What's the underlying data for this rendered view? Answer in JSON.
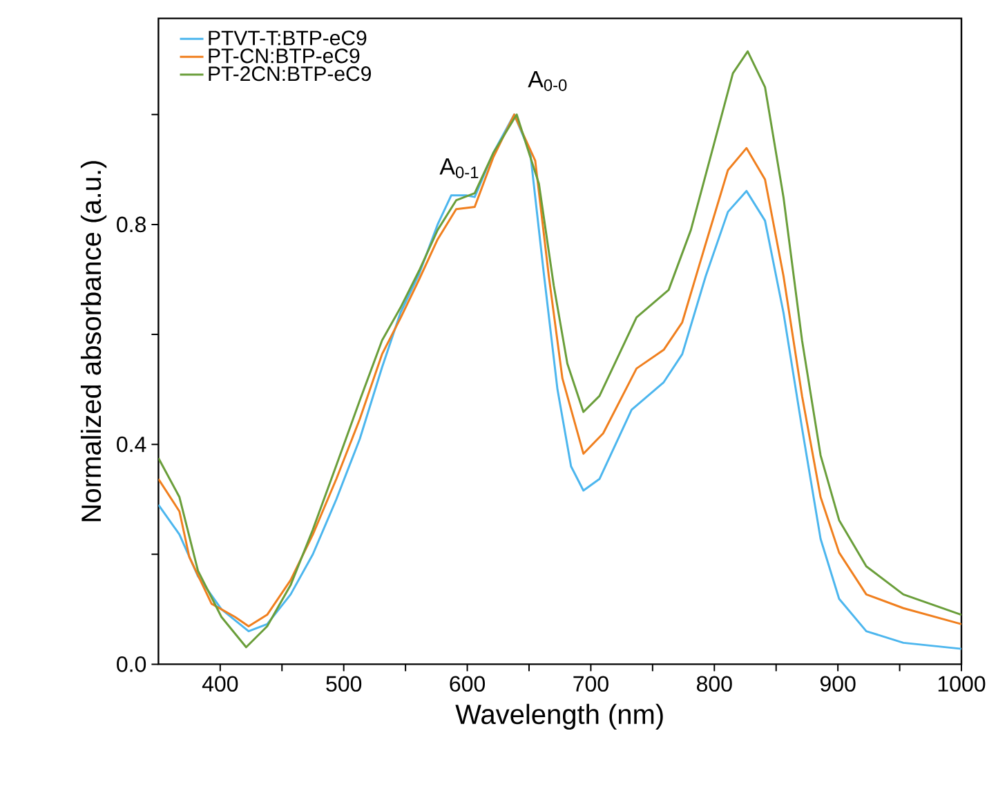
{
  "chart_data": {
    "type": "line",
    "xlabel": "Wavelength (nm)",
    "ylabel": "Normalized absorbance (a.u.)",
    "xlim": [
      350,
      1000
    ],
    "ylim": [
      0,
      1.175
    ],
    "xticks": [
      400,
      {
        "value": 450,
        "label": null
      },
      500,
      {
        "value": 550,
        "label": null
      },
      600,
      {
        "value": 650,
        "label": null
      },
      700,
      {
        "value": 750,
        "label": null
      },
      800,
      {
        "value": 850,
        "label": null
      },
      900,
      {
        "value": 950,
        "label": null
      },
      1000
    ],
    "yticks": [
      {
        "value": 0,
        "label": "0.0"
      },
      {
        "value": 0.2,
        "label": null
      },
      0.4,
      {
        "value": 0.6,
        "label": null
      },
      0.8,
      {
        "value": 1.0,
        "label": null
      }
    ],
    "legend": "top left",
    "grid": false,
    "marker": "none",
    "line_style": "solid",
    "annotations": [
      "A$_{0-1}$",
      "A$_{0-0}$"
    ],
    "series": [
      {
        "name": "PTVT-T:BTP-eC9",
        "color": "#4cb6ee",
        "x": [
          350,
          367,
          382,
          401,
          423,
          438,
          457,
          475,
          494,
          513,
          531,
          546,
          561,
          576,
          587,
          599,
          606,
          621,
          638,
          651,
          662,
          673,
          684,
          694,
          707,
          733,
          759,
          774,
          793,
          811,
          826,
          841,
          856,
          871,
          886,
          901,
          923,
          953,
          1000
        ],
        "values": [
          0.29,
          0.236,
          0.16,
          0.1,
          0.06,
          0.073,
          0.127,
          0.2,
          0.3,
          0.41,
          0.54,
          0.64,
          0.71,
          0.8,
          0.853,
          0.853,
          0.85,
          0.93,
          1.0,
          0.93,
          0.71,
          0.5,
          0.36,
          0.316,
          0.337,
          0.463,
          0.513,
          0.564,
          0.706,
          0.823,
          0.861,
          0.807,
          0.639,
          0.429,
          0.228,
          0.119,
          0.06,
          0.039,
          0.028
        ]
      },
      {
        "name": "PT-CN:BTP-eC9",
        "color": "#f07f1e",
        "x": [
          350,
          367,
          375,
          393,
          412,
          423,
          438,
          457,
          475,
          494,
          513,
          531,
          546,
          561,
          576,
          591,
          606,
          621,
          638,
          655,
          666,
          677,
          694,
          710,
          737,
          759,
          774,
          793,
          811,
          826,
          841,
          856,
          871,
          886,
          901,
          923,
          953,
          1000
        ],
        "values": [
          0.337,
          0.278,
          0.195,
          0.11,
          0.086,
          0.069,
          0.09,
          0.153,
          0.236,
          0.337,
          0.446,
          0.564,
          0.63,
          0.7,
          0.773,
          0.828,
          0.832,
          0.922,
          1.0,
          0.916,
          0.706,
          0.52,
          0.383,
          0.42,
          0.538,
          0.572,
          0.622,
          0.765,
          0.899,
          0.939,
          0.882,
          0.706,
          0.488,
          0.304,
          0.203,
          0.127,
          0.102,
          0.073
        ]
      },
      {
        "name": "PT-2CN:BTP-eC9",
        "color": "#6a9e3a",
        "x": [
          350,
          367,
          382,
          401,
          421,
          438,
          457,
          475,
          494,
          513,
          531,
          546,
          561,
          576,
          591,
          606,
          621,
          640,
          658,
          670,
          681,
          694,
          707,
          737,
          763,
          781,
          800,
          815,
          827,
          841,
          856,
          871,
          886,
          901,
          923,
          953,
          1000
        ],
        "values": [
          0.375,
          0.304,
          0.17,
          0.086,
          0.031,
          0.069,
          0.144,
          0.245,
          0.362,
          0.48,
          0.589,
          0.649,
          0.716,
          0.79,
          0.844,
          0.857,
          0.93,
          1.0,
          0.874,
          0.689,
          0.547,
          0.459,
          0.488,
          0.631,
          0.681,
          0.79,
          0.949,
          1.075,
          1.115,
          1.05,
          0.849,
          0.589,
          0.38,
          0.262,
          0.178,
          0.127,
          0.09
        ]
      }
    ]
  }
}
